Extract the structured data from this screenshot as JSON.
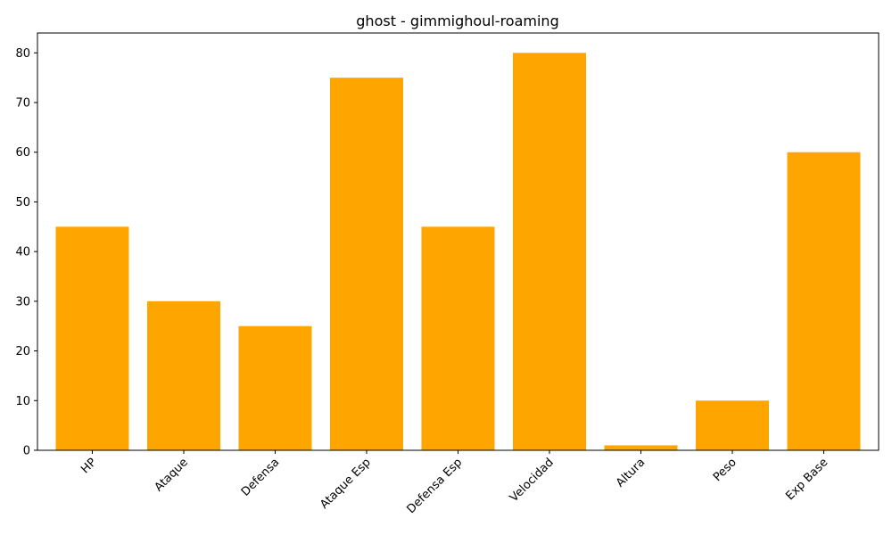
{
  "chart_data": {
    "type": "bar",
    "title": "ghost - gimmighoul-roaming",
    "xlabel": "",
    "ylabel": "",
    "categories": [
      "HP",
      "Ataque",
      "Defensa",
      "Ataque Esp",
      "Defensa Esp",
      "Velocidad",
      "Altura",
      "Peso",
      "Exp Base"
    ],
    "values": [
      45,
      30,
      25,
      75,
      45,
      80,
      1,
      10,
      60
    ],
    "ylim": [
      0,
      84
    ],
    "yticks": [
      0,
      10,
      20,
      30,
      40,
      50,
      60,
      70,
      80
    ],
    "bar_color": "#ffa500",
    "grid": false,
    "x_tick_rotation_deg": 45
  }
}
